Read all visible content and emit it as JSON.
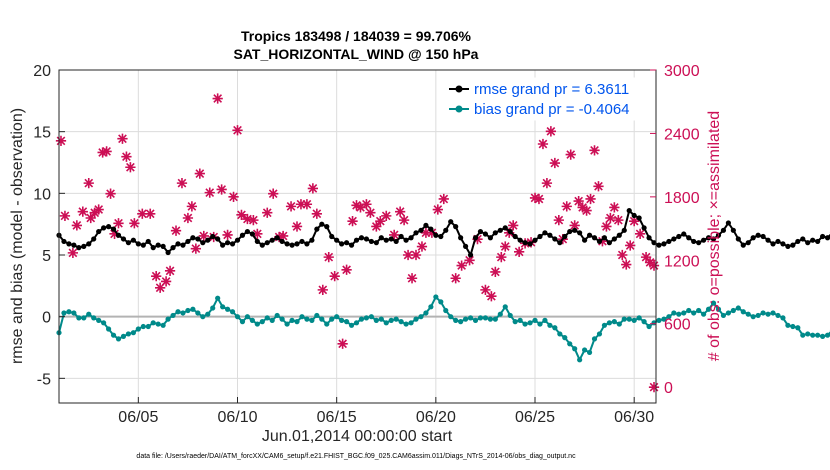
{
  "chart_data": {
    "type": "line",
    "title_line1": "Tropics 183498 / 184039 = 99.706%",
    "title_line2": "SAT_HORIZONTAL_WIND @ 150 hPa",
    "xlabel": "Jun.01,2014 00:00:00 start",
    "ylabel_left": "rmse and bias (model - observation)",
    "ylabel_right": "# of obs: o=possible; ×=assimilated",
    "xlim": [
      1,
      31.1
    ],
    "ylim_left": [
      -7,
      20
    ],
    "ylim_right": [
      -150,
      3000
    ],
    "x_ticks": [
      {
        "value": 5,
        "label": "06/05"
      },
      {
        "value": 10,
        "label": "06/10"
      },
      {
        "value": 15,
        "label": "06/15"
      },
      {
        "value": 20,
        "label": "06/20"
      },
      {
        "value": 25,
        "label": "06/25"
      },
      {
        "value": 30,
        "label": "06/30"
      }
    ],
    "y_ticks_left": [
      {
        "value": 20,
        "label": "20"
      },
      {
        "value": 15,
        "label": "15"
      },
      {
        "value": 10,
        "label": "10"
      },
      {
        "value": 5,
        "label": "5"
      },
      {
        "value": 0,
        "label": "0"
      },
      {
        "value": -5,
        "label": "-5"
      }
    ],
    "y_ticks_right": [
      {
        "value": 3000,
        "label": "3000"
      },
      {
        "value": 2400,
        "label": "2400"
      },
      {
        "value": 1800,
        "label": "1800"
      },
      {
        "value": 1200,
        "label": "1200"
      },
      {
        "value": 600,
        "label": "600"
      },
      {
        "value": 0,
        "label": "0"
      }
    ],
    "legend": [
      {
        "name": "rmse grand pr = 6.3611",
        "color": "#000000"
      },
      {
        "name": "bias grand pr = -0.4064",
        "color": "#008a8a"
      }
    ],
    "legend_position": "top-right",
    "grid": true,
    "zero_line": true,
    "colors": {
      "rmse": "#000000",
      "bias": "#008a8a",
      "obs": "#cc0f55",
      "zero": "#b3b3b3",
      "grid": "#dcdcdc"
    },
    "series": [
      {
        "name": "rmse",
        "start_day": 1.0,
        "step_days": 0.25,
        "values": [
          6.6,
          6.1,
          5.9,
          5.8,
          5.6,
          5.7,
          5.9,
          6.3,
          6.9,
          7.2,
          7.3,
          7.1,
          6.6,
          6.3,
          6.0,
          6.2,
          5.9,
          5.8,
          6.1,
          5.6,
          5.8,
          5.7,
          5.2,
          5.6,
          5.9,
          5.8,
          6.1,
          6.4,
          6.3,
          6.0,
          6.2,
          6.5,
          6.3,
          5.8,
          6.0,
          5.9,
          6.2,
          6.6,
          6.9,
          6.7,
          6.1,
          5.8,
          6.0,
          6.2,
          6.4,
          6.1,
          5.9,
          5.8,
          5.9,
          6.1,
          5.9,
          6.2,
          7.1,
          7.5,
          7.3,
          6.5,
          6.2,
          5.9,
          6.0,
          5.8,
          6.2,
          6.4,
          6.3,
          6.1,
          6.0,
          6.4,
          6.2,
          6.3,
          6.1,
          6.5,
          6.2,
          6.4,
          6.8,
          7.0,
          7.4,
          7.1,
          6.6,
          6.5,
          7.0,
          7.7,
          7.3,
          6.4,
          5.7,
          5.0,
          6.4,
          6.9,
          6.7,
          6.4,
          6.8,
          7.0,
          7.2,
          6.9,
          6.5,
          6.2,
          6.0,
          5.9,
          6.2,
          6.5,
          6.8,
          6.6,
          6.3,
          6.0,
          6.5,
          6.9,
          7.0,
          6.8,
          6.2,
          6.6,
          6.4,
          6.1,
          6.4,
          6.0,
          6.3,
          6.6,
          7.0,
          8.6,
          8.2,
          8.0,
          7.2,
          6.4,
          6.0,
          5.8,
          5.9,
          6.1,
          6.3,
          6.5,
          6.7,
          6.4,
          6.1,
          6.0,
          6.2,
          6.4,
          6.3,
          6.6,
          7.0,
          7.6,
          7.0,
          6.3,
          5.8,
          6.0,
          6.4,
          6.6,
          6.5,
          6.2,
          5.9,
          6.1,
          5.9,
          5.7,
          5.8,
          6.1,
          6.3,
          6.0,
          6.2,
          6.1,
          6.5,
          6.4,
          6.8,
          6.2,
          6.4,
          6.1,
          6.3,
          6.6,
          6.9,
          7.4,
          7.0,
          6.8,
          6.6,
          6.9,
          7.2,
          7.1,
          6.6,
          6.4,
          6.8,
          6.5,
          6.7,
          6.6,
          6.8,
          6.6,
          6.5,
          6.9,
          7.4,
          6.9
        ]
      },
      {
        "name": "bias",
        "start_day": 1.0,
        "step_days": 0.25,
        "values": [
          -1.3,
          0.3,
          0.4,
          0.3,
          -0.1,
          -0.1,
          0.2,
          -0.1,
          -0.3,
          -0.5,
          -1.0,
          -1.5,
          -1.8,
          -1.6,
          -1.4,
          -1.3,
          -1.0,
          -0.8,
          -0.8,
          -0.5,
          -0.6,
          -0.7,
          -0.2,
          0.1,
          0.4,
          0.3,
          0.5,
          0.6,
          0.3,
          0.0,
          0.2,
          0.7,
          1.5,
          0.8,
          0.6,
          0.4,
          0.0,
          -0.4,
          0.0,
          -0.3,
          -0.6,
          -0.4,
          -0.1,
          -0.3,
          0.1,
          -0.2,
          -0.6,
          -0.3,
          -0.4,
          0.0,
          -0.2,
          -0.3,
          0.1,
          -0.2,
          -0.6,
          -0.2,
          0.0,
          -0.3,
          -0.4,
          -0.7,
          -0.5,
          -0.2,
          -0.1,
          0.0,
          -0.3,
          -0.2,
          -0.5,
          -0.3,
          -0.2,
          -0.4,
          -0.6,
          -0.5,
          -0.2,
          0.0,
          0.3,
          0.8,
          1.6,
          1.2,
          0.5,
          0.0,
          -0.3,
          -0.4,
          -0.2,
          -0.1,
          -0.3,
          -0.1,
          -0.1,
          -0.2,
          -0.2,
          0.2,
          0.8,
          0.1,
          -0.4,
          -0.3,
          -0.6,
          -0.5,
          -0.3,
          -0.6,
          -0.3,
          -0.7,
          -0.9,
          -1.4,
          -1.7,
          -2.2,
          -2.6,
          -3.5,
          -2.7,
          -2.9,
          -1.8,
          -1.4,
          -0.7,
          -0.5,
          -0.4,
          -0.6,
          -0.2,
          -0.2,
          -0.3,
          -0.1,
          -0.4,
          -0.8,
          -0.5,
          -0.3,
          -0.2,
          0.0,
          0.3,
          0.2,
          0.3,
          0.5,
          0.3,
          0.5,
          0.2,
          0.6,
          1.1,
          0.6,
          0.1,
          0.3,
          0.5,
          0.7,
          0.4,
          0.2,
          0.0,
          0.1,
          0.3,
          0.2,
          0.3,
          0.1,
          -0.1,
          -0.7,
          -0.8,
          -0.9,
          -1.5,
          -1.4,
          -1.5,
          -1.5,
          -1.6,
          -1.5,
          -1.1,
          -0.7,
          -1.0,
          -1.1,
          -1.1,
          -1.1,
          -1.5,
          -1.9,
          -1.9,
          -1.7,
          -1.7
        ]
      },
      {
        "name": "assimilated",
        "axis": "right",
        "points": [
          [
            1.1,
            2330
          ],
          [
            1.3,
            1620
          ],
          [
            1.7,
            1270
          ],
          [
            1.9,
            1530
          ],
          [
            2.2,
            1660
          ],
          [
            2.5,
            1930
          ],
          [
            2.6,
            1600
          ],
          [
            2.8,
            1650
          ],
          [
            3.0,
            1680
          ],
          [
            3.2,
            2220
          ],
          [
            3.4,
            2230
          ],
          [
            3.6,
            1830
          ],
          [
            3.8,
            1450
          ],
          [
            4.0,
            1550
          ],
          [
            4.2,
            2350
          ],
          [
            4.4,
            2180
          ],
          [
            4.6,
            2080
          ],
          [
            4.8,
            1550
          ],
          [
            5.2,
            1640
          ],
          [
            5.6,
            1640
          ],
          [
            5.9,
            1050
          ],
          [
            6.1,
            940
          ],
          [
            6.4,
            1000
          ],
          [
            6.6,
            1100
          ],
          [
            6.9,
            1480
          ],
          [
            7.2,
            1930
          ],
          [
            7.5,
            1600
          ],
          [
            7.7,
            1710
          ],
          [
            7.9,
            1310
          ],
          [
            8.1,
            2020
          ],
          [
            8.3,
            1430
          ],
          [
            8.6,
            1840
          ],
          [
            8.8,
            1420
          ],
          [
            9.0,
            2730
          ],
          [
            9.2,
            1870
          ],
          [
            9.5,
            1440
          ],
          [
            9.8,
            1800
          ],
          [
            10.0,
            2430
          ],
          [
            10.2,
            1630
          ],
          [
            10.5,
            1590
          ],
          [
            10.8,
            1580
          ],
          [
            11.0,
            1450
          ],
          [
            11.5,
            1650
          ],
          [
            11.8,
            1830
          ],
          [
            12.1,
            1420
          ],
          [
            12.3,
            1430
          ],
          [
            12.7,
            1710
          ],
          [
            13.0,
            1520
          ],
          [
            13.2,
            1730
          ],
          [
            13.5,
            1730
          ],
          [
            13.8,
            1880
          ],
          [
            14.0,
            1640
          ],
          [
            14.3,
            920
          ],
          [
            14.6,
            1230
          ],
          [
            14.9,
            1050
          ],
          [
            15.3,
            410
          ],
          [
            15.5,
            1110
          ],
          [
            15.8,
            1570
          ],
          [
            16.0,
            1720
          ],
          [
            16.2,
            1700
          ],
          [
            16.5,
            1730
          ],
          [
            16.7,
            1650
          ],
          [
            17.0,
            1520
          ],
          [
            17.2,
            1570
          ],
          [
            17.5,
            1620
          ],
          [
            17.9,
            1440
          ],
          [
            18.2,
            1660
          ],
          [
            18.4,
            1580
          ],
          [
            18.6,
            1250
          ],
          [
            18.8,
            1030
          ],
          [
            19.0,
            1250
          ],
          [
            19.3,
            1330
          ],
          [
            19.5,
            1460
          ],
          [
            19.8,
            1460
          ],
          [
            20.1,
            1680
          ],
          [
            20.4,
            1780
          ],
          [
            21.0,
            1030
          ],
          [
            21.3,
            1150
          ],
          [
            21.7,
            1200
          ],
          [
            22.1,
            1400
          ],
          [
            22.5,
            920
          ],
          [
            22.8,
            860
          ],
          [
            23.0,
            1090
          ],
          [
            23.3,
            1230
          ],
          [
            23.5,
            1330
          ],
          [
            23.7,
            1460
          ],
          [
            23.9,
            1530
          ],
          [
            24.2,
            1280
          ],
          [
            24.5,
            1360
          ],
          [
            24.8,
            1370
          ],
          [
            25.0,
            1790
          ],
          [
            25.2,
            1780
          ],
          [
            25.4,
            2300
          ],
          [
            25.6,
            1930
          ],
          [
            25.8,
            2420
          ],
          [
            26.0,
            2120
          ],
          [
            26.2,
            1580
          ],
          [
            26.4,
            1400
          ],
          [
            26.6,
            1710
          ],
          [
            26.8,
            2200
          ],
          [
            27.0,
            1530
          ],
          [
            27.2,
            1760
          ],
          [
            27.4,
            1700
          ],
          [
            27.6,
            1670
          ],
          [
            27.8,
            1780
          ],
          [
            28.0,
            2240
          ],
          [
            28.2,
            1900
          ],
          [
            28.4,
            1380
          ],
          [
            28.6,
            1520
          ],
          [
            28.8,
            1600
          ],
          [
            29.0,
            1700
          ],
          [
            29.2,
            1580
          ],
          [
            29.4,
            1250
          ],
          [
            29.6,
            1160
          ],
          [
            29.8,
            1340
          ],
          [
            30.0,
            1570
          ],
          [
            30.3,
            1450
          ],
          [
            30.6,
            1230
          ],
          [
            30.8,
            1180
          ],
          [
            31.0,
            1150
          ],
          [
            31.0,
            0
          ]
        ]
      }
    ]
  },
  "footer": "data file: /Users/raeder/DAI/ATM_forcXX/CAM6_setup/f.e21.FHIST_BGC.f09_025.CAM6assim.011/Diags_NTrS_2014-06/obs_diag_output.nc"
}
